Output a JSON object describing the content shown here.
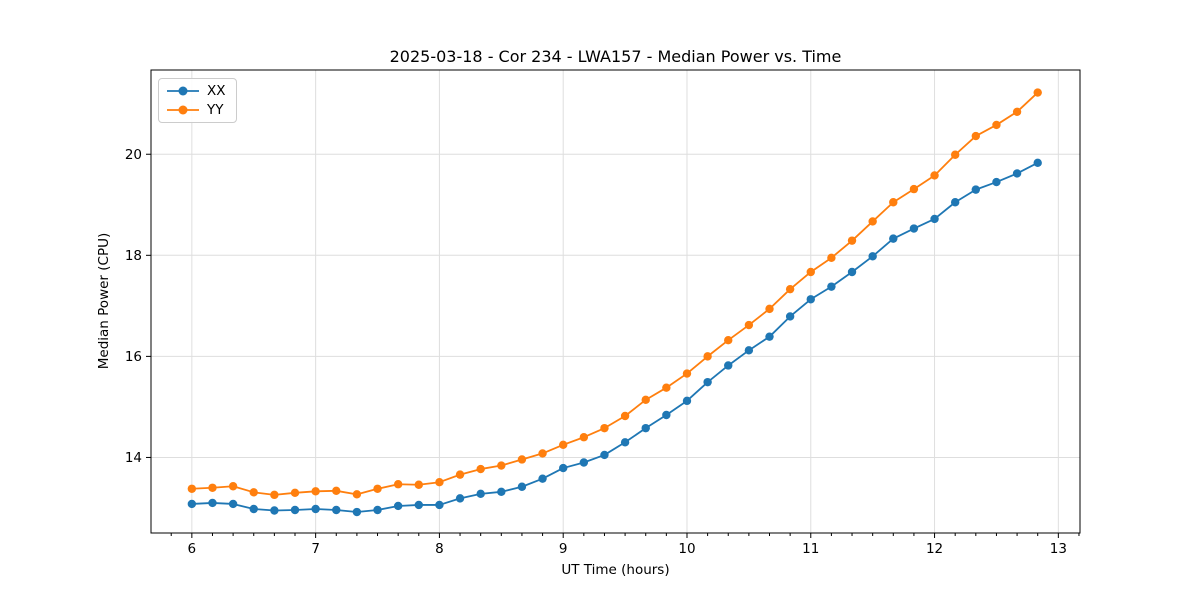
{
  "figure": {
    "background": "#ffffff"
  },
  "chart_data": {
    "type": "line",
    "title": "2025-03-18 - Cor 234 - LWA157 - Median Power vs. Time",
    "xlabel": "UT Time (hours)",
    "ylabel": "Median Power (CPU)",
    "xlim": [
      5.67,
      13.175
    ],
    "ylim": [
      12.505,
      21.667
    ],
    "x_ticks": [
      6,
      7,
      8,
      9,
      10,
      11,
      12,
      13
    ],
    "y_ticks": [
      14,
      16,
      18,
      20
    ],
    "x_minor_tick_step_hours": 0.16667,
    "grid": true,
    "legend_position": "upper-left",
    "marker": "circle",
    "x": [
      6.0,
      6.1667,
      6.3333,
      6.5,
      6.6667,
      6.8333,
      7.0,
      7.1667,
      7.3333,
      7.5,
      7.6667,
      7.8333,
      8.0,
      8.1667,
      8.3333,
      8.5,
      8.6667,
      8.8333,
      9.0,
      9.1667,
      9.3333,
      9.5,
      9.6667,
      9.8333,
      10.0,
      10.1667,
      10.3333,
      10.5,
      10.6667,
      10.8333,
      11.0,
      11.1667,
      11.3333,
      11.5,
      11.6667,
      11.8333,
      12.0,
      12.1667,
      12.3333,
      12.5,
      12.6667,
      12.8333
    ],
    "series": [
      {
        "name": "XX",
        "color": "#1f77b4",
        "values": [
          13.08,
          13.1,
          13.08,
          12.98,
          12.95,
          12.96,
          12.98,
          12.96,
          12.92,
          12.96,
          13.04,
          13.06,
          13.06,
          13.19,
          13.28,
          13.32,
          13.42,
          13.58,
          13.79,
          13.9,
          14.05,
          14.3,
          14.58,
          14.84,
          15.12,
          15.49,
          15.82,
          16.12,
          16.39,
          16.79,
          17.13,
          17.38,
          17.67,
          17.98,
          18.33,
          18.53,
          18.72,
          19.05,
          19.3,
          19.45,
          19.62,
          19.83
        ]
      },
      {
        "name": "YY",
        "color": "#ff7f0e",
        "values": [
          13.38,
          13.4,
          13.43,
          13.31,
          13.26,
          13.3,
          13.33,
          13.34,
          13.27,
          13.38,
          13.47,
          13.46,
          13.51,
          13.66,
          13.77,
          13.84,
          13.96,
          14.08,
          14.25,
          14.4,
          14.58,
          14.82,
          15.14,
          15.38,
          15.66,
          16.0,
          16.32,
          16.62,
          16.94,
          17.33,
          17.67,
          17.95,
          18.29,
          18.67,
          19.05,
          19.31,
          19.58,
          19.99,
          20.36,
          20.58,
          20.84,
          21.22
        ]
      }
    ]
  },
  "colors": {
    "grid": "#dedede",
    "spine": "#000000",
    "tick": "#000000",
    "text": "#000000",
    "legend_border": "#cccccc"
  }
}
